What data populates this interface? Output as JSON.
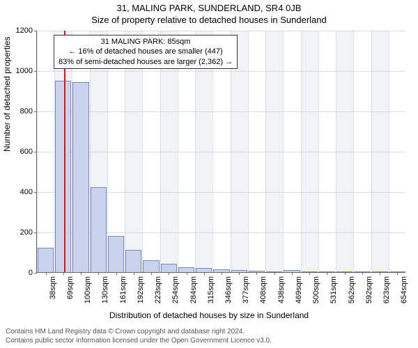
{
  "title_line1": "31, MALING PARK, SUNDERLAND, SR4 0JB",
  "title_line2": "Size of property relative to detached houses in Sunderland",
  "y_axis": {
    "label": "Number of detached properties",
    "max": 1200,
    "ticks": [
      0,
      200,
      400,
      600,
      800,
      1000,
      1200
    ]
  },
  "x_axis": {
    "label": "Distribution of detached houses by size in Sunderland",
    "tick_labels": [
      "38sqm",
      "69sqm",
      "100sqm",
      "130sqm",
      "161sqm",
      "192sqm",
      "223sqm",
      "254sqm",
      "284sqm",
      "315sqm",
      "346sqm",
      "377sqm",
      "408sqm",
      "438sqm",
      "469sqm",
      "500sqm",
      "531sqm",
      "562sqm",
      "592sqm",
      "623sqm",
      "654sqm"
    ]
  },
  "bars": {
    "values": [
      120,
      950,
      940,
      420,
      180,
      110,
      60,
      40,
      25,
      20,
      15,
      10,
      8,
      5,
      10,
      4,
      3,
      2,
      2,
      1,
      1
    ],
    "fill": "#c9d3ed",
    "stroke": "#7a88b8",
    "width_frac": 0.92
  },
  "marker": {
    "index_position": 1.55,
    "color": "#d11919"
  },
  "annotation": {
    "line1": "31 MALING PARK: 85sqm",
    "line2": "← 16% of detached houses are smaller (447)",
    "line3": "83% of semi-detached houses are larger (2,362) →"
  },
  "plot_style": {
    "band_odd": "#f2f3f7",
    "band_even": "#ffffff",
    "grid_color": "#c4c6d0"
  },
  "footer": {
    "line1": "Contains HM Land Registry data © Crown copyright and database right 2024.",
    "line2": "Contains public sector information licensed under the Open Government Licence v3.0."
  }
}
